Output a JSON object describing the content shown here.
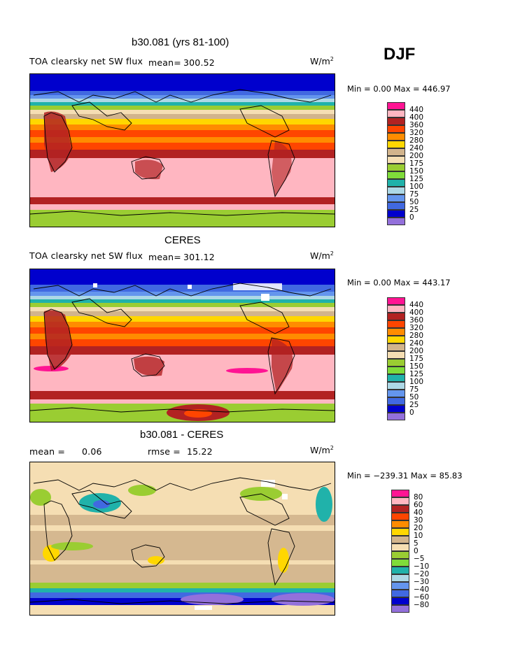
{
  "season": "DJF",
  "panels": [
    {
      "title": "b30.081 (yrs 81-100)",
      "variable": "TOA clearsky net SW flux",
      "mean_label": "mean=",
      "mean_value": "300.52",
      "unit": "W/m",
      "unit_sup": "2",
      "minmax": "Min =    0.00 Max = 446.97",
      "colorbar": {
        "colors": [
          "#ff1493",
          "#ffb6c1",
          "#b22222",
          "#ff4500",
          "#ff8c00",
          "#ffd700",
          "#d2b48c",
          "#f5deb3",
          "#9acd32",
          "#7fdc3a",
          "#20b2aa",
          "#add8e6",
          "#6495ed",
          "#4169e1",
          "#0000cd",
          "#9370db"
        ],
        "labels": [
          "440",
          "400",
          "360",
          "320",
          "280",
          "240",
          "200",
          "175",
          "150",
          "125",
          "100",
          "75",
          "50",
          "25",
          "0"
        ]
      }
    },
    {
      "title": "CERES",
      "variable": "TOA clearsky net SW flux",
      "mean_label": "mean=",
      "mean_value": "301.12",
      "unit": "W/m",
      "unit_sup": "2",
      "minmax": "Min =    0.00 Max = 443.17",
      "colorbar": {
        "colors": [
          "#ff1493",
          "#ffb6c1",
          "#b22222",
          "#ff4500",
          "#ff8c00",
          "#ffd700",
          "#d2b48c",
          "#f5deb3",
          "#9acd32",
          "#7fdc3a",
          "#20b2aa",
          "#add8e6",
          "#6495ed",
          "#4169e1",
          "#0000cd",
          "#9370db"
        ],
        "labels": [
          "440",
          "400",
          "360",
          "320",
          "280",
          "240",
          "200",
          "175",
          "150",
          "125",
          "100",
          "75",
          "50",
          "25",
          "0"
        ]
      }
    },
    {
      "title": "b30.081 - CERES",
      "mean_label": "mean =",
      "mean_value": "0.06",
      "rmse_label": "rmse =",
      "rmse_value": "15.22",
      "unit": "W/m",
      "unit_sup": "2",
      "minmax": "Min = −239.31 Max =   85.83",
      "colorbar": {
        "colors": [
          "#ff1493",
          "#ffb6c1",
          "#b22222",
          "#ff4500",
          "#ff8c00",
          "#ffd700",
          "#d2b48c",
          "#f5deb3",
          "#9acd32",
          "#7fdc3a",
          "#20b2aa",
          "#add8e6",
          "#6495ed",
          "#4169e1",
          "#0000cd",
          "#9370db"
        ],
        "labels": [
          "80",
          "60",
          "40",
          "30",
          "20",
          "10",
          "5",
          "0",
          "−5",
          "−10",
          "−20",
          "−30",
          "−40",
          "−60",
          "−80"
        ]
      }
    }
  ]
}
